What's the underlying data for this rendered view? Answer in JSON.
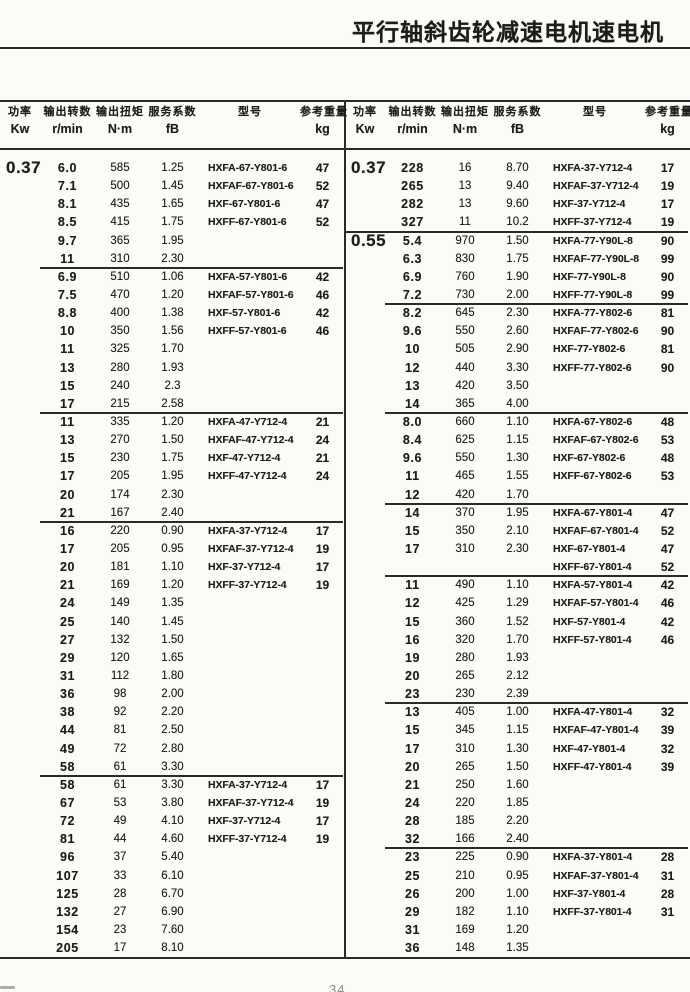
{
  "title": "平行轴斜齿轮减速电机速电机",
  "page_number": "34",
  "colors": {
    "paper": "#fbfbf8",
    "ink": "#1c1c1c",
    "line": "#2a2a2a"
  },
  "table": {
    "columns": [
      {
        "key": "power",
        "label1": "功率",
        "label2": "Kw"
      },
      {
        "key": "speed",
        "label1": "输出转数",
        "label2": "r/min"
      },
      {
        "key": "torque",
        "label1": "输出扭矩",
        "label2": "N·m"
      },
      {
        "key": "fb",
        "label1": "服务系数",
        "label2": "fB"
      },
      {
        "key": "model",
        "label1": "型号",
        "label2": ""
      },
      {
        "key": "weight",
        "label1": "参考重量",
        "label2": "kg"
      }
    ],
    "halves": [
      {
        "name": "left",
        "sections": [
          {
            "power": "0.37",
            "groups": [
              [
                [
                  "6.0",
                  "585",
                  "1.25",
                  "HXFA-67-Y801-6",
                  "47"
                ],
                [
                  "7.1",
                  "500",
                  "1.45",
                  "HXFAF-67-Y801-6",
                  "52"
                ],
                [
                  "8.1",
                  "435",
                  "1.65",
                  "HXF-67-Y801-6",
                  "47"
                ],
                [
                  "8.5",
                  "415",
                  "1.75",
                  "HXFF-67-Y801-6",
                  "52"
                ],
                [
                  "9.7",
                  "365",
                  "1.95",
                  "",
                  ""
                ],
                [
                  "11",
                  "310",
                  "2.30",
                  "",
                  ""
                ]
              ],
              [
                [
                  "6.9",
                  "510",
                  "1.06",
                  "HXFA-57-Y801-6",
                  "42"
                ],
                [
                  "7.5",
                  "470",
                  "1.20",
                  "HXFAF-57-Y801-6",
                  "46"
                ],
                [
                  "8.8",
                  "400",
                  "1.38",
                  "HXF-57-Y801-6",
                  "42"
                ],
                [
                  "10",
                  "350",
                  "1.56",
                  "HXFF-57-Y801-6",
                  "46"
                ],
                [
                  "11",
                  "325",
                  "1.70",
                  "",
                  ""
                ],
                [
                  "13",
                  "280",
                  "1.93",
                  "",
                  ""
                ],
                [
                  "15",
                  "240",
                  "2.3",
                  "",
                  ""
                ],
                [
                  "17",
                  "215",
                  "2.58",
                  "",
                  ""
                ]
              ],
              [
                [
                  "11",
                  "335",
                  "1.20",
                  "HXFA-47-Y712-4",
                  "21"
                ],
                [
                  "13",
                  "270",
                  "1.50",
                  "HXFAF-47-Y712-4",
                  "24"
                ],
                [
                  "15",
                  "230",
                  "1.75",
                  "HXF-47-Y712-4",
                  "21"
                ],
                [
                  "17",
                  "205",
                  "1.95",
                  "HXFF-47-Y712-4",
                  "24"
                ],
                [
                  "20",
                  "174",
                  "2.30",
                  "",
                  ""
                ],
                [
                  "21",
                  "167",
                  "2.40",
                  "",
                  ""
                ]
              ],
              [
                [
                  "16",
                  "220",
                  "0.90",
                  "HXFA-37-Y712-4",
                  "17"
                ],
                [
                  "17",
                  "205",
                  "0.95",
                  "HXFAF-37-Y712-4",
                  "19"
                ],
                [
                  "20",
                  "181",
                  "1.10",
                  "HXF-37-Y712-4",
                  "17"
                ],
                [
                  "21",
                  "169",
                  "1.20",
                  "HXFF-37-Y712-4",
                  "19"
                ],
                [
                  "24",
                  "149",
                  "1.35",
                  "",
                  ""
                ],
                [
                  "25",
                  "140",
                  "1.45",
                  "",
                  ""
                ],
                [
                  "27",
                  "132",
                  "1.50",
                  "",
                  ""
                ],
                [
                  "29",
                  "120",
                  "1.65",
                  "",
                  ""
                ],
                [
                  "31",
                  "112",
                  "1.80",
                  "",
                  ""
                ],
                [
                  "36",
                  "98",
                  "2.00",
                  "",
                  ""
                ],
                [
                  "38",
                  "92",
                  "2.20",
                  "",
                  ""
                ],
                [
                  "44",
                  "81",
                  "2.50",
                  "",
                  ""
                ],
                [
                  "49",
                  "72",
                  "2.80",
                  "",
                  ""
                ],
                [
                  "58",
                  "61",
                  "3.30",
                  "",
                  ""
                ]
              ],
              [
                [
                  "58",
                  "61",
                  "3.30",
                  "HXFA-37-Y712-4",
                  "17"
                ],
                [
                  "67",
                  "53",
                  "3.80",
                  "HXFAF-37-Y712-4",
                  "19"
                ],
                [
                  "72",
                  "49",
                  "4.10",
                  "HXF-37-Y712-4",
                  "17"
                ],
                [
                  "81",
                  "44",
                  "4.60",
                  "HXFF-37-Y712-4",
                  "19"
                ],
                [
                  "96",
                  "37",
                  "5.40",
                  "",
                  ""
                ],
                [
                  "107",
                  "33",
                  "6.10",
                  "",
                  ""
                ],
                [
                  "125",
                  "28",
                  "6.70",
                  "",
                  ""
                ],
                [
                  "132",
                  "27",
                  "6.90",
                  "",
                  ""
                ],
                [
                  "154",
                  "23",
                  "7.60",
                  "",
                  ""
                ],
                [
                  "205",
                  "17",
                  "8.10",
                  "",
                  ""
                ]
              ]
            ]
          }
        ]
      },
      {
        "name": "right",
        "sections": [
          {
            "power": "0.37",
            "groups": [
              [
                [
                  "228",
                  "16",
                  "8.70",
                  "HXFA-37-Y712-4",
                  "17"
                ],
                [
                  "265",
                  "13",
                  "9.40",
                  "HXFAF-37-Y712-4",
                  "19"
                ],
                [
                  "282",
                  "13",
                  "9.60",
                  "HXF-37-Y712-4",
                  "17"
                ],
                [
                  "327",
                  "11",
                  "10.2",
                  "HXFF-37-Y712-4",
                  "19"
                ]
              ]
            ]
          },
          {
            "power": "0.55",
            "groups": [
              [
                [
                  "5.4",
                  "970",
                  "1.50",
                  "HXFA-77-Y90L-8",
                  "90"
                ],
                [
                  "6.3",
                  "830",
                  "1.75",
                  "HXFAF-77-Y90L-8",
                  "99"
                ],
                [
                  "6.9",
                  "760",
                  "1.90",
                  "HXF-77-Y90L-8",
                  "90"
                ],
                [
                  "7.2",
                  "730",
                  "2.00",
                  "HXFF-77-Y90L-8",
                  "99"
                ]
              ],
              [
                [
                  "8.2",
                  "645",
                  "2.30",
                  "HXFA-77-Y802-6",
                  "81"
                ],
                [
                  "9.6",
                  "550",
                  "2.60",
                  "HXFAF-77-Y802-6",
                  "90"
                ],
                [
                  "10",
                  "505",
                  "2.90",
                  "HXF-77-Y802-6",
                  "81"
                ],
                [
                  "12",
                  "440",
                  "3.30",
                  "HXFF-77-Y802-6",
                  "90"
                ],
                [
                  "13",
                  "420",
                  "3.50",
                  "",
                  ""
                ],
                [
                  "14",
                  "365",
                  "4.00",
                  "",
                  ""
                ]
              ],
              [
                [
                  "8.0",
                  "660",
                  "1.10",
                  "HXFA-67-Y802-6",
                  "48"
                ],
                [
                  "8.4",
                  "625",
                  "1.15",
                  "HXFAF-67-Y802-6",
                  "53"
                ],
                [
                  "9.6",
                  "550",
                  "1.30",
                  "HXF-67-Y802-6",
                  "48"
                ],
                [
                  "11",
                  "465",
                  "1.55",
                  "HXFF-67-Y802-6",
                  "53"
                ],
                [
                  "12",
                  "420",
                  "1.70",
                  "",
                  ""
                ]
              ],
              [
                [
                  "14",
                  "370",
                  "1.95",
                  "HXFA-67-Y801-4",
                  "47"
                ],
                [
                  "15",
                  "350",
                  "2.10",
                  "HXFAF-67-Y801-4",
                  "52"
                ],
                [
                  "17",
                  "310",
                  "2.30",
                  "HXF-67-Y801-4",
                  "47"
                ],
                [
                  "",
                  "",
                  "",
                  "HXFF-67-Y801-4",
                  "52"
                ]
              ],
              [
                [
                  "11",
                  "490",
                  "1.10",
                  "HXFA-57-Y801-4",
                  "42"
                ],
                [
                  "12",
                  "425",
                  "1.29",
                  "HXFAF-57-Y801-4",
                  "46"
                ],
                [
                  "15",
                  "360",
                  "1.52",
                  "HXF-57-Y801-4",
                  "42"
                ],
                [
                  "16",
                  "320",
                  "1.70",
                  "HXFF-57-Y801-4",
                  "46"
                ],
                [
                  "19",
                  "280",
                  "1.93",
                  "",
                  ""
                ],
                [
                  "20",
                  "265",
                  "2.12",
                  "",
                  ""
                ],
                [
                  "23",
                  "230",
                  "2.39",
                  "",
                  ""
                ]
              ],
              [
                [
                  "13",
                  "405",
                  "1.00",
                  "HXFA-47-Y801-4",
                  "32"
                ],
                [
                  "15",
                  "345",
                  "1.15",
                  "HXFAF-47-Y801-4",
                  "39"
                ],
                [
                  "17",
                  "310",
                  "1.30",
                  "HXF-47-Y801-4",
                  "32"
                ],
                [
                  "20",
                  "265",
                  "1.50",
                  "HXFF-47-Y801-4",
                  "39"
                ],
                [
                  "21",
                  "250",
                  "1.60",
                  "",
                  ""
                ],
                [
                  "24",
                  "220",
                  "1.85",
                  "",
                  ""
                ],
                [
                  "28",
                  "185",
                  "2.20",
                  "",
                  ""
                ],
                [
                  "32",
                  "166",
                  "2.40",
                  "",
                  ""
                ]
              ],
              [
                [
                  "23",
                  "225",
                  "0.90",
                  "HXFA-37-Y801-4",
                  "28"
                ],
                [
                  "25",
                  "210",
                  "0.95",
                  "HXFAF-37-Y801-4",
                  "31"
                ],
                [
                  "26",
                  "200",
                  "1.00",
                  "HXF-37-Y801-4",
                  "28"
                ],
                [
                  "29",
                  "182",
                  "1.10",
                  "HXFF-37-Y801-4",
                  "31"
                ],
                [
                  "31",
                  "169",
                  "1.20",
                  "",
                  ""
                ],
                [
                  "36",
                  "148",
                  "1.35",
                  "",
                  ""
                ]
              ]
            ]
          }
        ]
      }
    ]
  }
}
